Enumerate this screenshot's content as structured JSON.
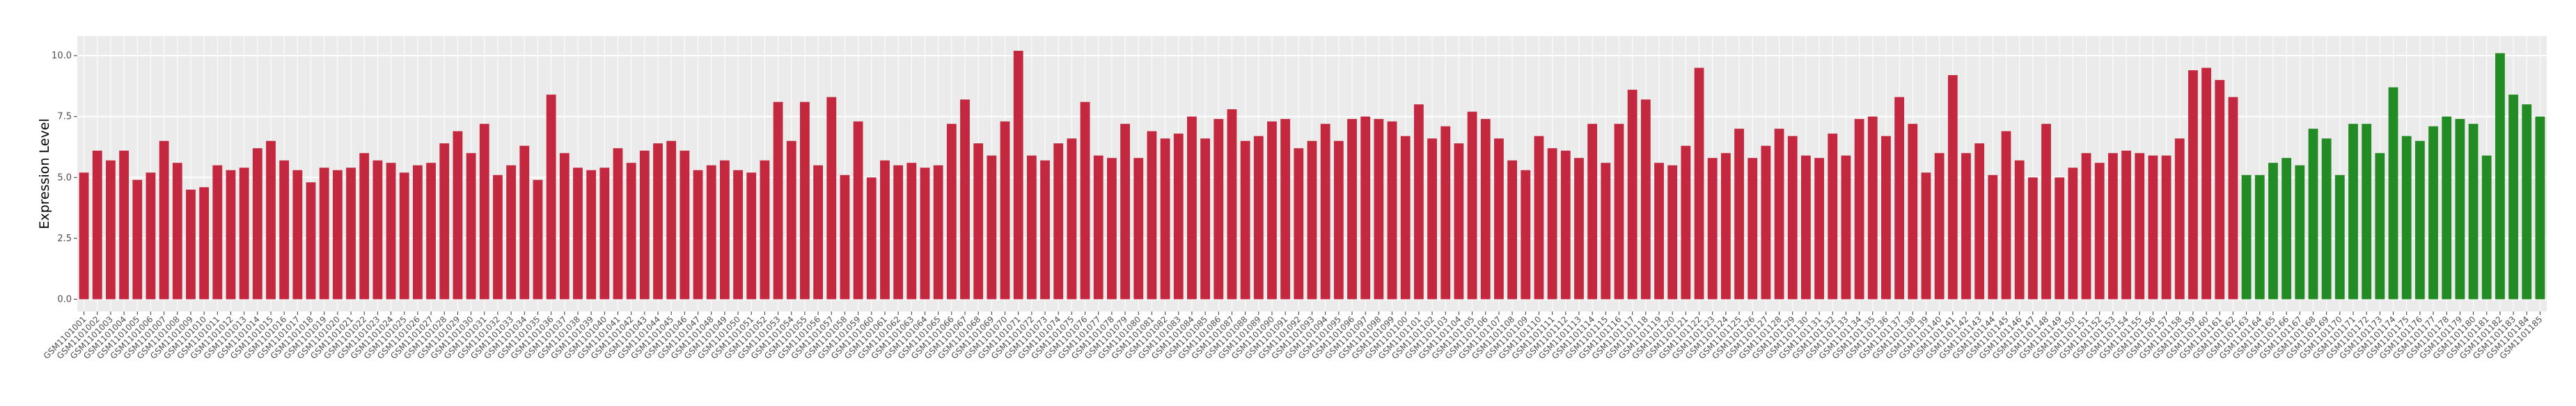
{
  "chart_data": {
    "type": "bar",
    "y_label": "Expression Level",
    "categories": [
      "GSM1101001",
      "GSM1101002",
      "GSM1101003",
      "GSM1101004",
      "GSM1101005",
      "GSM1101006",
      "GSM1101007",
      "GSM1101008",
      "GSM1101009",
      "GSM1101010",
      "GSM1101011",
      "GSM1101012",
      "GSM1101013",
      "GSM1101014",
      "GSM1101015",
      "GSM1101016",
      "GSM1101017",
      "GSM1101018",
      "GSM1101019",
      "GSM1101020",
      "GSM1101021",
      "GSM1101022",
      "GSM1101023",
      "GSM1101024",
      "GSM1101025",
      "GSM1101026",
      "GSM1101027",
      "GSM1101028",
      "GSM1101029",
      "GSM1101030",
      "GSM1101031",
      "GSM1101032",
      "GSM1101033",
      "GSM1101034",
      "GSM1101035",
      "GSM1101036",
      "GSM1101037",
      "GSM1101038",
      "GSM1101039",
      "GSM1101040",
      "GSM1101041",
      "GSM1101042",
      "GSM1101043",
      "GSM1101044",
      "GSM1101045",
      "GSM1101046",
      "GSM1101047",
      "GSM1101048",
      "GSM1101049",
      "GSM1101050",
      "GSM1101051",
      "GSM1101052",
      "GSM1101053",
      "GSM1101054",
      "GSM1101055",
      "GSM1101056",
      "GSM1101057",
      "GSM1101058",
      "GSM1101059",
      "GSM1101060",
      "GSM1101061",
      "GSM1101062",
      "GSM1101063",
      "GSM1101064",
      "GSM1101065",
      "GSM1101066",
      "GSM1101067",
      "GSM1101068",
      "GSM1101069",
      "GSM1101070",
      "GSM1101071",
      "GSM1101072",
      "GSM1101073",
      "GSM1101074",
      "GSM1101075",
      "GSM1101076",
      "GSM1101077",
      "GSM1101078",
      "GSM1101079",
      "GSM1101080",
      "GSM1101081",
      "GSM1101082",
      "GSM1101083",
      "GSM1101084",
      "GSM1101085",
      "GSM1101086",
      "GSM1101087",
      "GSM1101088",
      "GSM1101089",
      "GSM1101090",
      "GSM1101091",
      "GSM1101092",
      "GSM1101093",
      "GSM1101094",
      "GSM1101095",
      "GSM1101096",
      "GSM1101097",
      "GSM1101098",
      "GSM1101099",
      "GSM1101100",
      "GSM1101101",
      "GSM1101102",
      "GSM1101103",
      "GSM1101104",
      "GSM1101105",
      "GSM1101106",
      "GSM1101107",
      "GSM1101108",
      "GSM1101109",
      "GSM1101110",
      "GSM1101111",
      "GSM1101112",
      "GSM1101113",
      "GSM1101114",
      "GSM1101115",
      "GSM1101116",
      "GSM1101117",
      "GSM1101118",
      "GSM1101119",
      "GSM1101120",
      "GSM1101121",
      "GSM1101122",
      "GSM1101123",
      "GSM1101124",
      "GSM1101125",
      "GSM1101126",
      "GSM1101127",
      "GSM1101128",
      "GSM1101129",
      "GSM1101130",
      "GSM1101131",
      "GSM1101132",
      "GSM1101133",
      "GSM1101134",
      "GSM1101135",
      "GSM1101136",
      "GSM1101137",
      "GSM1101138",
      "GSM1101139",
      "GSM1101140",
      "GSM1101141",
      "GSM1101142",
      "GSM1101143",
      "GSM1101144",
      "GSM1101145",
      "GSM1101146",
      "GSM1101147",
      "GSM1101148",
      "GSM1101149",
      "GSM1101150",
      "GSM1101151",
      "GSM1101152",
      "GSM1101153",
      "GSM1101154",
      "GSM1101155",
      "GSM1101156",
      "GSM1101157",
      "GSM1101158",
      "GSM1101159",
      "GSM1101160",
      "GSM1101161",
      "GSM1101162",
      "GSM1101163",
      "GSM1101164",
      "GSM1101165",
      "GSM1101166",
      "GSM1101167",
      "GSM1101168",
      "GSM1101169",
      "GSM1101170",
      "GSM1101171",
      "GSM1101172",
      "GSM1101173",
      "GSM1101174",
      "GSM1101175",
      "GSM1101176",
      "GSM1101177",
      "GSM1101178",
      "GSM1101179",
      "GSM1101180",
      "GSM1101181",
      "GSM1101182",
      "GSM1101183",
      "GSM1101184",
      "GSM1101185"
    ],
    "series": [
      {
        "color": "#c3283e",
        "values": [
          5.2,
          6.1,
          5.7,
          6.1,
          4.9,
          5.2,
          6.5,
          5.6,
          4.5,
          4.6,
          5.5,
          5.3,
          5.4,
          6.2,
          6.5,
          5.7,
          5.3,
          4.8,
          5.4,
          5.3,
          5.4,
          6.0,
          5.7,
          5.6,
          5.2,
          5.5,
          5.6,
          6.4,
          6.9,
          6.0,
          7.2,
          5.1,
          5.5,
          6.3,
          4.9,
          8.4,
          6.0,
          5.4,
          5.3,
          5.4,
          6.2,
          5.6,
          6.1,
          6.4,
          6.5,
          6.1,
          5.3,
          5.5,
          5.7,
          5.3,
          5.2,
          5.7,
          8.1,
          6.5,
          8.1,
          5.5,
          8.3,
          5.1,
          7.3,
          5.0,
          5.7,
          5.5,
          5.6,
          5.4,
          5.5,
          7.2,
          8.2,
          6.4,
          5.9,
          7.3,
          10.2,
          5.9,
          5.7,
          6.4,
          6.6,
          8.1,
          5.9,
          5.8,
          7.2,
          5.8,
          6.9,
          6.6,
          6.8,
          7.5,
          6.6,
          7.4,
          7.8,
          6.5,
          6.7,
          7.3,
          7.4,
          6.2,
          6.5,
          7.2,
          6.5,
          7.4,
          7.5,
          7.4,
          7.3,
          6.7,
          8.0,
          6.6,
          7.1,
          6.4,
          7.7,
          7.4,
          6.6,
          5.7,
          5.3,
          6.7,
          6.2,
          6.1,
          5.8,
          7.2,
          5.6,
          7.2,
          8.6,
          8.2,
          5.6,
          5.5,
          6.3,
          9.5,
          5.8,
          6.0,
          7.0,
          5.8,
          6.3,
          7.0,
          6.7,
          5.9,
          5.8,
          6.8,
          5.9,
          7.4,
          7.5,
          6.7,
          8.3,
          7.2,
          5.2,
          6.0,
          9.2,
          6.0,
          6.4,
          5.1,
          6.9,
          5.7,
          5.0,
          7.2,
          5.0,
          5.4,
          6.0,
          5.6,
          6.0,
          6.1,
          6.0,
          5.9,
          5.9,
          6.6,
          9.4,
          9.5,
          9.0,
          8.3,
          null,
          null,
          null,
          null,
          null,
          null,
          null,
          null,
          null,
          null,
          null,
          null,
          null,
          null,
          null,
          null,
          null,
          null,
          null,
          null,
          null,
          null,
          null
        ]
      },
      {
        "color": "#238b23",
        "values": [
          null,
          null,
          null,
          null,
          null,
          null,
          null,
          null,
          null,
          null,
          null,
          null,
          null,
          null,
          null,
          null,
          null,
          null,
          null,
          null,
          null,
          null,
          null,
          null,
          null,
          null,
          null,
          null,
          null,
          null,
          null,
          null,
          null,
          null,
          null,
          null,
          null,
          null,
          null,
          null,
          null,
          null,
          null,
          null,
          null,
          null,
          null,
          null,
          null,
          null,
          null,
          null,
          null,
          null,
          null,
          null,
          null,
          null,
          null,
          null,
          null,
          null,
          null,
          null,
          null,
          null,
          null,
          null,
          null,
          null,
          null,
          null,
          null,
          null,
          null,
          null,
          null,
          null,
          null,
          null,
          null,
          null,
          null,
          null,
          null,
          null,
          null,
          null,
          null,
          null,
          null,
          null,
          null,
          null,
          null,
          null,
          null,
          null,
          null,
          null,
          null,
          null,
          null,
          null,
          null,
          null,
          null,
          null,
          null,
          null,
          null,
          null,
          null,
          null,
          null,
          null,
          null,
          null,
          null,
          null,
          null,
          null,
          null,
          null,
          null,
          null,
          null,
          null,
          null,
          null,
          null,
          null,
          null,
          null,
          null,
          null,
          null,
          null,
          null,
          null,
          null,
          null,
          null,
          null,
          null,
          null,
          null,
          null,
          null,
          null,
          null,
          null,
          null,
          null,
          null,
          null,
          null,
          null,
          null,
          null,
          null,
          null,
          5.1,
          5.1,
          5.6,
          5.8,
          5.5,
          7.0,
          6.6,
          5.1,
          7.2,
          7.2,
          6.0,
          8.7,
          6.7,
          6.5,
          7.1,
          7.5,
          7.4,
          7.2,
          5.9,
          10.1,
          8.4,
          8.0,
          7.5
        ]
      }
    ],
    "ylim": [
      -0.5,
      10.8
    ],
    "yticks": [
      {
        "value": 0,
        "label": "0.0"
      },
      {
        "value": 2.5,
        "label": "2.5"
      },
      {
        "value": 5,
        "label": "5.0"
      },
      {
        "value": 7.5,
        "label": "7.5"
      },
      {
        "value": 10,
        "label": "10.0"
      }
    ],
    "grid": true
  }
}
